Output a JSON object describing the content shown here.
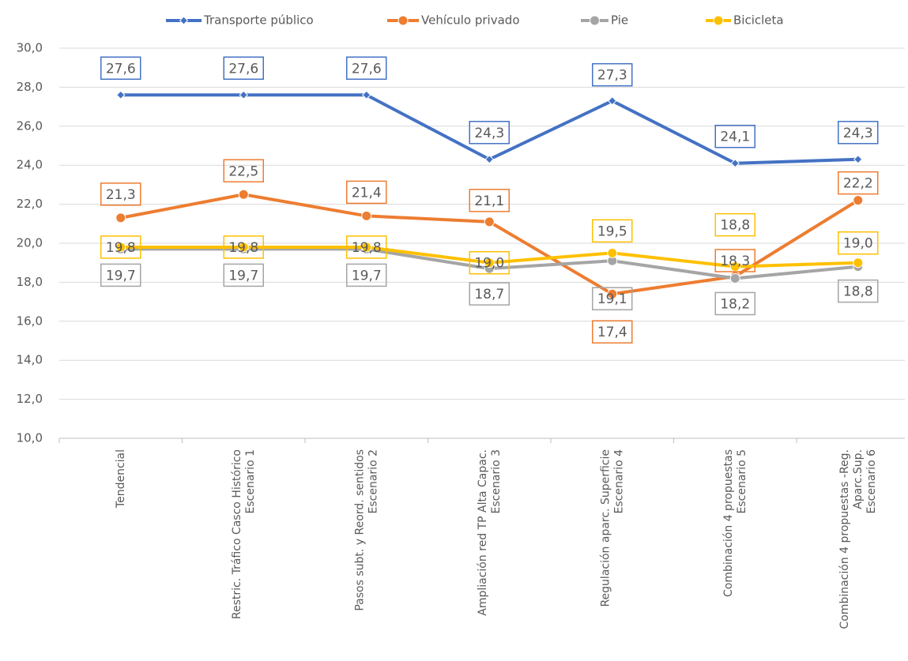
{
  "chart_data": {
    "type": "line",
    "categories": [
      [
        "Tendencial"
      ],
      [
        "Restric. Tráfico Casco Histórico",
        "Escenario 1"
      ],
      [
        "Pasos subt. y Reord. sentidos",
        "Escenario 2"
      ],
      [
        "Ampliación red TP Alta Capac.",
        "Escenario 3"
      ],
      [
        "Regulación aparc. Superficie",
        "Escenario 4"
      ],
      [
        "Combinación 4 propuestas",
        "Escenario 5"
      ],
      [
        "Combinación 4 propuestas -Reg.",
        "Aparc.Sup.",
        "Escenario 6"
      ]
    ],
    "series": [
      {
        "name": "Transporte público",
        "color": "#4472c4",
        "marker": "diamond",
        "values": [
          27.6,
          27.6,
          27.6,
          24.3,
          27.3,
          24.1,
          24.3
        ],
        "value_labels": [
          "27,6",
          "27,6",
          "27,6",
          "24,3",
          "27,3",
          "24,1",
          "24,3"
        ]
      },
      {
        "name": "Vehículo privado",
        "color": "#ed7d31",
        "marker": "circle",
        "values": [
          21.3,
          22.5,
          21.4,
          21.1,
          17.4,
          18.3,
          22.2
        ],
        "value_labels": [
          "21,3",
          "22,5",
          "21,4",
          "21,1",
          "17,4",
          "18,3",
          "22,2"
        ]
      },
      {
        "name": "Pie",
        "color": "#a5a5a5",
        "marker": "circle",
        "values": [
          19.7,
          19.7,
          19.7,
          18.7,
          19.1,
          18.2,
          18.8
        ],
        "value_labels": [
          "19,7",
          "19,7",
          "19,7",
          "18,7",
          "19,1",
          "18,2",
          "18,8"
        ]
      },
      {
        "name": "Bicicleta",
        "color": "#ffc000",
        "marker": "circle",
        "values": [
          19.8,
          19.8,
          19.8,
          19.0,
          19.5,
          18.8,
          19.0
        ],
        "value_labels": [
          "19,8",
          "19,8",
          "19,8",
          "19,0",
          "19,5",
          "18,8",
          "19,0"
        ]
      }
    ],
    "ylim": [
      10,
      30
    ],
    "yticks": [
      {
        "value": 10,
        "label": "10,0"
      },
      {
        "value": 12,
        "label": "12,0"
      },
      {
        "value": 14,
        "label": "14,0"
      },
      {
        "value": 16,
        "label": "16,0"
      },
      {
        "value": 18,
        "label": "18,0"
      },
      {
        "value": 20,
        "label": "20,0"
      },
      {
        "value": 22,
        "label": "22,0"
      },
      {
        "value": 24,
        "label": "24,0"
      },
      {
        "value": 26,
        "label": "26,0"
      },
      {
        "value": 28,
        "label": "28,0"
      },
      {
        "value": 30,
        "label": "30,0"
      }
    ],
    "grid": true,
    "legend": "top"
  }
}
